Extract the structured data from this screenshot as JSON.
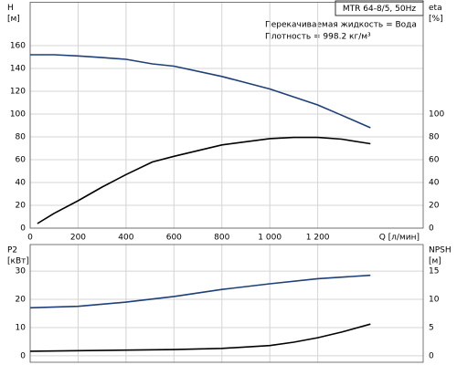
{
  "chart_data": [
    {
      "type": "line",
      "title": "MTR 64-8/5, 50Hz",
      "annotations": [
        "Перекачиваемая жидкость = Вода",
        "Плотность = 998.2 кг/м³"
      ],
      "y_label": [
        "H",
        "[м]"
      ],
      "y2_label": [
        "eta",
        "[%]"
      ],
      "x_label": "Q [л/мин]",
      "xlim": [
        0,
        1640
      ],
      "xticks": [
        0,
        200,
        400,
        600,
        800,
        {
          "value": 1000,
          "label": "1 000"
        },
        {
          "value": 1200,
          "label": "1 200"
        }
      ],
      "ylim": [
        0,
        198
      ],
      "yticks": [
        0,
        20,
        40,
        60,
        80,
        100,
        120,
        140,
        160
      ],
      "y2lim": [
        0,
        198
      ],
      "y2ticks": [
        0,
        20,
        40,
        60,
        80,
        100
      ],
      "grid": true,
      "series": [
        {
          "color": "#1e3f78",
          "x": [
            0,
            100,
            200,
            300,
            400,
            510,
            600,
            800,
            1000,
            1200,
            1300,
            1420
          ],
          "values": [
            152,
            152,
            151,
            149.5,
            148,
            144,
            142,
            133,
            122,
            108,
            99,
            88
          ]
        },
        {
          "color": "#000000",
          "axis": "y2",
          "x": [
            30,
            100,
            200,
            300,
            400,
            510,
            600,
            800,
            1000,
            1100,
            1200,
            1300,
            1420
          ],
          "values": [
            4,
            13,
            24,
            36,
            47,
            58,
            63,
            73,
            78.5,
            79.5,
            79.5,
            78,
            74
          ]
        }
      ]
    },
    {
      "type": "line",
      "y_label": [
        "P2",
        "[кВт]"
      ],
      "y2_label": [
        "NPSH",
        "[м]"
      ],
      "xlim": [
        0,
        1640
      ],
      "xticks": [
        0,
        200,
        400,
        600,
        800,
        1000,
        1200
      ],
      "ylim": [
        -2.3,
        39.4
      ],
      "yticks": [
        0,
        10,
        20,
        30
      ],
      "y2lim": [
        -1.15,
        19.7
      ],
      "y2ticks": [
        0,
        5,
        10,
        15
      ],
      "grid": true,
      "series": [
        {
          "color": "#1e3f78",
          "x": [
            0,
            200,
            400,
            600,
            800,
            1000,
            1200,
            1420
          ],
          "values": [
            17,
            17.5,
            19,
            21,
            23.5,
            25.5,
            27.3,
            28.5
          ]
        },
        {
          "color": "#000000",
          "axis": "y2",
          "x": [
            0,
            200,
            400,
            600,
            800,
            1000,
            1100,
            1200,
            1300,
            1420
          ],
          "values": [
            0.8,
            0.9,
            1,
            1.1,
            1.3,
            1.8,
            2.4,
            3.2,
            4.2,
            5.6
          ]
        }
      ]
    }
  ]
}
